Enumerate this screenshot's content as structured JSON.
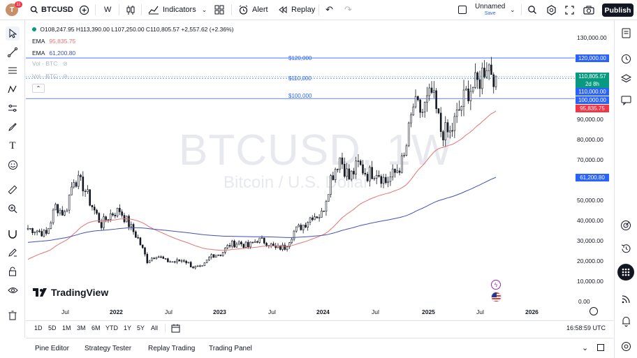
{
  "header": {
    "avatar_letter": "T",
    "notification_count": "11",
    "symbol": "BTCUSD",
    "add_symbol_icon": "plus-circle-icon",
    "interval": "W",
    "chart_type_icon": "candles-icon",
    "indicators_label": "Indicators",
    "layouts_icon": "grid-icon",
    "alert_label": "Alert",
    "replay_label": "Replay",
    "layout_name": "Unnamed",
    "layout_save": "Save",
    "publish_label": "Publish"
  },
  "legend": {
    "ohlc": "O108,247.95 H113,390.00 L107,250.00 C110,805.57 +2,557.62 (+2.36%)",
    "ema1_label": "EMA",
    "ema1_value": "95,835.75",
    "ema2_label": "EMA",
    "ema2_value": "61,200.80",
    "vol1": "Vol · BTC",
    "vol2": "Vol · BTC"
  },
  "watermark": {
    "symbol_line": "BTCUSD, 1W",
    "name_line": "Bitcoin / U.S. Dollar"
  },
  "brand": "TradingView",
  "hlines": [
    {
      "label": "$120,000",
      "value": 120000
    },
    {
      "label": "$110,000",
      "value": 110000
    },
    {
      "label": "$100,000",
      "value": 100000
    }
  ],
  "price_axis": {
    "ticks": [
      "130,000.00",
      "90,000.00",
      "80,000.00",
      "70,000.00",
      "50,000.00",
      "40,000.00",
      "30,000.00",
      "20,000.00",
      "10,000.00",
      "0.00"
    ],
    "tags": [
      {
        "text": "120,000.00",
        "color": "#2962ff"
      },
      {
        "text": "110,805.57",
        "color": "#089981"
      },
      {
        "text": "2d 8h",
        "color": "#089981"
      },
      {
        "text": "110,000.00",
        "color": "#2962ff"
      },
      {
        "text": "100,000.00",
        "color": "#2962ff"
      },
      {
        "text": "95,835.75",
        "color": "#f23645"
      },
      {
        "text": "61,200.80",
        "color": "#2962ff"
      }
    ]
  },
  "time_axis": {
    "ticks": [
      "Jul",
      "2022",
      "Jul",
      "2023",
      "Jul",
      "2024",
      "Jul",
      "2025",
      "Jul",
      "2026"
    ]
  },
  "timeframes": [
    "1D",
    "5D",
    "1M",
    "3M",
    "6M",
    "YTD",
    "1Y",
    "5Y",
    "All"
  ],
  "clock": "16:58:59 UTC",
  "footer_tabs": [
    "Pine Editor",
    "Strategy Tester",
    "Replay Trading",
    "Trading Panel"
  ],
  "colors": {
    "up": "#131722",
    "down": "#131722",
    "ema_fast": "#e57373",
    "ema_slow": "#3f51b5",
    "hline": "#2962ff"
  },
  "chart_data": {
    "type": "candlestick",
    "title": "BTCUSD, 1W",
    "x_range": [
      "2021-05",
      "2026-03"
    ],
    "ylim": [
      0,
      135000
    ],
    "close_series": [
      {
        "t": "2021-05",
        "v": 36000
      },
      {
        "t": "2021-06",
        "v": 35000
      },
      {
        "t": "2021-07",
        "v": 33000
      },
      {
        "t": "2021-08",
        "v": 47000
      },
      {
        "t": "2021-09",
        "v": 43000
      },
      {
        "t": "2021-10",
        "v": 61000
      },
      {
        "t": "2021-11",
        "v": 57000
      },
      {
        "t": "2021-12",
        "v": 47000
      },
      {
        "t": "2022-01",
        "v": 38000
      },
      {
        "t": "2022-02",
        "v": 43000
      },
      {
        "t": "2022-03",
        "v": 45000
      },
      {
        "t": "2022-04",
        "v": 38000
      },
      {
        "t": "2022-05",
        "v": 31000
      },
      {
        "t": "2022-06",
        "v": 20000
      },
      {
        "t": "2022-07",
        "v": 23000
      },
      {
        "t": "2022-08",
        "v": 20000
      },
      {
        "t": "2022-09",
        "v": 19500
      },
      {
        "t": "2022-10",
        "v": 20500
      },
      {
        "t": "2022-11",
        "v": 17000
      },
      {
        "t": "2022-12",
        "v": 16500
      },
      {
        "t": "2023-01",
        "v": 23000
      },
      {
        "t": "2023-02",
        "v": 23500
      },
      {
        "t": "2023-03",
        "v": 28000
      },
      {
        "t": "2023-04",
        "v": 29000
      },
      {
        "t": "2023-05",
        "v": 27000
      },
      {
        "t": "2023-06",
        "v": 30500
      },
      {
        "t": "2023-07",
        "v": 29300
      },
      {
        "t": "2023-08",
        "v": 26000
      },
      {
        "t": "2023-09",
        "v": 27000
      },
      {
        "t": "2023-10",
        "v": 34500
      },
      {
        "t": "2023-11",
        "v": 37700
      },
      {
        "t": "2023-12",
        "v": 42500
      },
      {
        "t": "2024-01",
        "v": 42500
      },
      {
        "t": "2024-02",
        "v": 61000
      },
      {
        "t": "2024-03",
        "v": 71000
      },
      {
        "t": "2024-04",
        "v": 60600
      },
      {
        "t": "2024-05",
        "v": 67500
      },
      {
        "t": "2024-06",
        "v": 62700
      },
      {
        "t": "2024-07",
        "v": 64600
      },
      {
        "t": "2024-08",
        "v": 59000
      },
      {
        "t": "2024-09",
        "v": 63300
      },
      {
        "t": "2024-10",
        "v": 70200
      },
      {
        "t": "2024-11",
        "v": 96400
      },
      {
        "t": "2024-12",
        "v": 93400
      },
      {
        "t": "2025-01",
        "v": 102400
      },
      {
        "t": "2025-02",
        "v": 84300
      },
      {
        "t": "2025-03",
        "v": 82500
      },
      {
        "t": "2025-04",
        "v": 94200
      },
      {
        "t": "2025-05",
        "v": 104600
      },
      {
        "t": "2025-06",
        "v": 107100
      },
      {
        "t": "2025-07",
        "v": 118000
      },
      {
        "t": "2025-08",
        "v": 110805
      }
    ],
    "ema_fast_name": "EMA",
    "ema_slow_name": "EMA",
    "ema_fast_last": 95835.75,
    "ema_slow_last": 61200.8
  }
}
